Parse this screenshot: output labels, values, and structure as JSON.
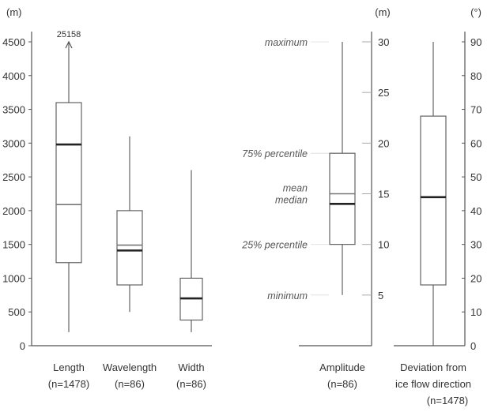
{
  "chart_data": [
    {
      "type": "box",
      "ylabel": "(m)",
      "ylim": [
        0,
        4500
      ],
      "yticks": [
        0,
        500,
        1000,
        1500,
        2000,
        2500,
        3000,
        3500,
        4000,
        4500
      ],
      "series": [
        {
          "label": "Length",
          "sublabel": "(n=1478)",
          "min": 200,
          "q1": 1230,
          "median": 2980,
          "mean": 2090,
          "q3": 3600,
          "max": 4500,
          "outlier_arrow": true,
          "outlier_label": "25158"
        },
        {
          "label": "Wavelength",
          "sublabel": "(n=86)",
          "min": 500,
          "q1": 900,
          "median": 1410,
          "mean": 1490,
          "q3": 2000,
          "max": 3100
        },
        {
          "label": "Width",
          "sublabel": "(n=86)",
          "min": 200,
          "q1": 380,
          "median": 700,
          "mean": 700,
          "q3": 1000,
          "max": 2600
        }
      ]
    },
    {
      "type": "box",
      "ylabel": "(m)",
      "ylim": [
        0,
        30
      ],
      "yticks": [
        5,
        10,
        15,
        20,
        25,
        30
      ],
      "series": [
        {
          "label": "Amplitude",
          "sublabel": "(n=86)",
          "min": 5,
          "q1": 10,
          "median": 14,
          "mean": 15,
          "q3": 19,
          "max": 30
        }
      ],
      "key": {
        "maximum": "maximum",
        "q3": "75% percentile",
        "mean": "mean",
        "median": "median",
        "q1": "25% percentile",
        "minimum": "minimum"
      }
    },
    {
      "type": "box",
      "ylabel": "(°)",
      "ylim": [
        0,
        90
      ],
      "yticks": [
        0,
        10,
        20,
        30,
        40,
        50,
        60,
        70,
        80,
        90
      ],
      "series": [
        {
          "label": "Deviation from",
          "label2": "ice flow direction",
          "sublabel": "(n=1478)",
          "min": 0,
          "q1": 18,
          "median": 44,
          "mean": 44,
          "q3": 68,
          "max": 90
        }
      ]
    }
  ]
}
